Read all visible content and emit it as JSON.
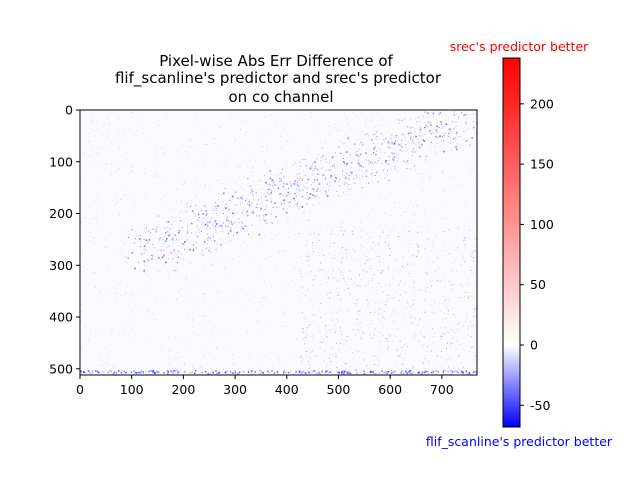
{
  "chart_data": {
    "type": "heatmap",
    "title_lines": [
      "Pixel-wise Abs Err Difference of",
      "flif_scanline's predictor and srec's predictor",
      "on co channel"
    ],
    "image_width": 768,
    "image_height": 512,
    "xlim": [
      0,
      768
    ],
    "ylim_inverted": [
      512,
      0
    ],
    "x_ticks": [
      0,
      100,
      200,
      300,
      400,
      500,
      600,
      700
    ],
    "y_ticks": [
      0,
      100,
      200,
      300,
      400,
      500
    ],
    "colorbar": {
      "min": -68,
      "max": 238,
      "ticks": [
        -50,
        0,
        50,
        100,
        150,
        200
      ],
      "colors": {
        "low": "#0000ff",
        "mid": "#ffffff",
        "high": "#ff0000"
      },
      "top_label": "srec's predictor better",
      "bottom_label": "flif_scanline's predictor better",
      "top_label_color": "#ff0000",
      "bottom_label_color": "#0000ff"
    }
  }
}
